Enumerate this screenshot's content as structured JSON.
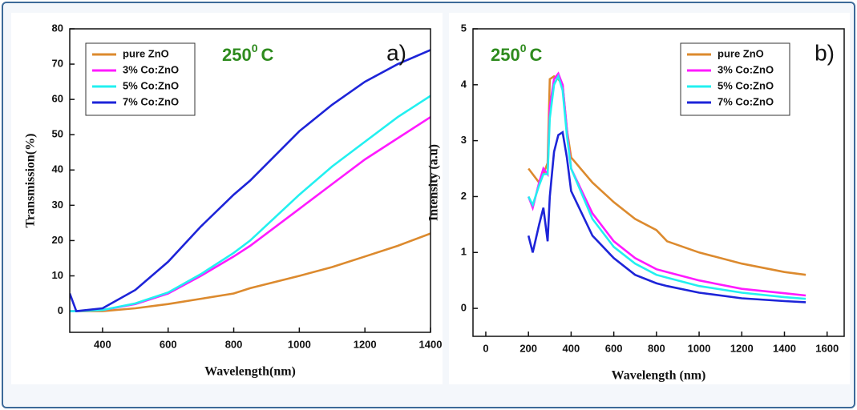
{
  "chart_data": [
    {
      "type": "line",
      "xlabel": "Wavelength(nm)",
      "ylabel": "Transmission(%)",
      "annotation": {
        "text": "250",
        "superscript": "0",
        "suffix": "C"
      },
      "panel_label": "a)",
      "x": [
        300,
        320,
        400,
        500,
        600,
        700,
        800,
        850,
        1000,
        1100,
        1200,
        1300,
        1400
      ],
      "series": [
        {
          "name": "pure ZnO",
          "color": "#dc8a2e",
          "values": [
            0,
            0,
            0,
            0.8,
            2,
            3.5,
            5,
            6.5,
            10,
            12.5,
            15.5,
            18.5,
            22
          ]
        },
        {
          "name": "3% Co:ZnO",
          "color": "#ff1aff",
          "values": [
            0,
            0,
            0.3,
            2,
            5,
            10,
            15.5,
            18.5,
            29,
            36,
            43,
            49,
            55
          ]
        },
        {
          "name": "5% Co:ZnO",
          "color": "#22f0f0",
          "values": [
            0,
            0,
            0.3,
            2.2,
            5.3,
            10.5,
            16.5,
            20,
            33,
            41,
            48,
            55,
            61
          ]
        },
        {
          "name": "7% Co:ZnO",
          "color": "#1d24d8",
          "values": [
            5,
            0,
            0.8,
            6,
            14,
            24,
            33,
            37,
            51,
            58.5,
            65,
            70,
            74
          ]
        }
      ],
      "xlim": [
        300,
        1400
      ],
      "xticks": [
        400,
        600,
        800,
        1000,
        1200,
        1400
      ],
      "ylim": [
        -6,
        80
      ],
      "yticks": [
        0,
        10,
        20,
        30,
        40,
        50,
        60,
        70,
        80
      ],
      "legend": "upper left"
    },
    {
      "type": "line",
      "xlabel": "Wavelength (nm)",
      "ylabel": "Intensity (a.u)",
      "annotation": {
        "text": "250",
        "superscript": "0",
        "suffix": "C"
      },
      "panel_label": "b)",
      "x": [
        200,
        220,
        250,
        270,
        290,
        300,
        320,
        340,
        360,
        380,
        400,
        500,
        600,
        700,
        800,
        850,
        1000,
        1200,
        1400,
        1500
      ],
      "series": [
        {
          "name": "pure ZnO",
          "color": "#dc8a2e",
          "values": [
            2.5,
            2.4,
            2.25,
            2.4,
            2.6,
            4.1,
            4.15,
            4.1,
            4.0,
            3.2,
            2.7,
            2.25,
            1.9,
            1.6,
            1.4,
            1.2,
            1.0,
            0.8,
            0.65,
            0.6
          ]
        },
        {
          "name": "3% Co:ZnO",
          "color": "#ff1aff",
          "values": [
            2.0,
            1.8,
            2.25,
            2.5,
            2.4,
            3.6,
            4.1,
            4.2,
            4.0,
            3.2,
            2.5,
            1.7,
            1.2,
            0.9,
            0.7,
            0.65,
            0.5,
            0.35,
            0.27,
            0.23
          ]
        },
        {
          "name": "5% Co:ZnO",
          "color": "#22f0f0",
          "values": [
            2.0,
            1.85,
            2.2,
            2.4,
            2.4,
            3.4,
            4.0,
            4.15,
            3.9,
            3.1,
            2.5,
            1.6,
            1.1,
            0.8,
            0.6,
            0.55,
            0.4,
            0.28,
            0.2,
            0.17
          ]
        },
        {
          "name": "7% Co:ZnO",
          "color": "#1d24d8",
          "values": [
            1.3,
            1.0,
            1.5,
            1.8,
            1.2,
            2.0,
            2.8,
            3.1,
            3.15,
            2.7,
            2.1,
            1.3,
            0.9,
            0.6,
            0.45,
            0.4,
            0.28,
            0.18,
            0.13,
            0.11
          ]
        }
      ],
      "xlim": [
        -60,
        1680
      ],
      "xticks": [
        0,
        200,
        400,
        600,
        800,
        1000,
        1200,
        1400,
        1600
      ],
      "ylim": [
        -0.5,
        5
      ],
      "yticks": [
        0,
        1,
        2,
        3,
        4,
        5
      ],
      "legend": "upper right"
    }
  ]
}
